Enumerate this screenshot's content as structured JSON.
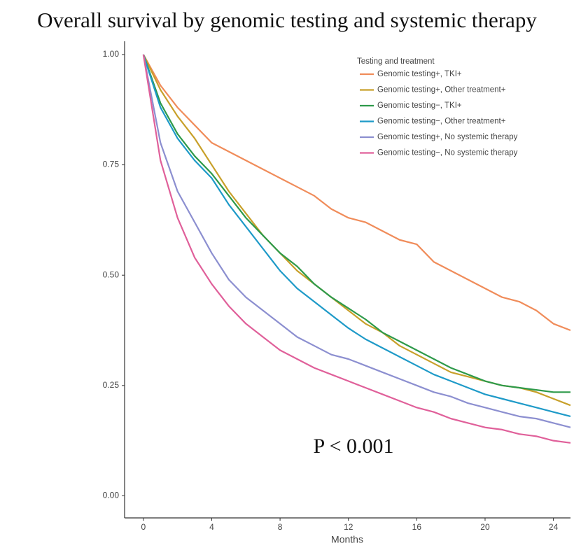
{
  "chart_data": {
    "type": "line",
    "title": "Overall survival by genomic testing and systemic therapy",
    "x_label": "Months",
    "legend_title": "Testing and treatment",
    "annotation": "P < 0.001",
    "legend_position": "top-right",
    "x": [
      0,
      1,
      2,
      3,
      4,
      5,
      6,
      7,
      8,
      9,
      10,
      11,
      12,
      13,
      14,
      15,
      16,
      17,
      18,
      19,
      20,
      21,
      22,
      23,
      24,
      25
    ],
    "series": [
      {
        "name": "Genomic testing+, TKI+",
        "color": "#f08c5a",
        "values": [
          1,
          0.93,
          0.88,
          0.84,
          0.8,
          0.78,
          0.76,
          0.74,
          0.72,
          0.7,
          0.68,
          0.65,
          0.63,
          0.62,
          0.6,
          0.58,
          0.57,
          0.53,
          0.51,
          0.49,
          0.47,
          0.45,
          0.44,
          0.42,
          0.39,
          0.375
        ]
      },
      {
        "name": "Genomic testing+, Other treatment+",
        "color": "#c8a02a",
        "values": [
          1,
          0.92,
          0.86,
          0.81,
          0.75,
          0.69,
          0.64,
          0.59,
          0.55,
          0.51,
          0.48,
          0.45,
          0.42,
          0.39,
          0.37,
          0.34,
          0.32,
          0.3,
          0.28,
          0.27,
          0.26,
          0.25,
          0.245,
          0.235,
          0.22,
          0.205
        ]
      },
      {
        "name": "Genomic testing−, TKI+",
        "color": "#2e9a4a",
        "values": [
          1,
          0.89,
          0.82,
          0.77,
          0.73,
          0.68,
          0.63,
          0.59,
          0.55,
          0.52,
          0.48,
          0.45,
          0.425,
          0.4,
          0.37,
          0.35,
          0.33,
          0.31,
          0.29,
          0.275,
          0.26,
          0.25,
          0.245,
          0.24,
          0.235,
          0.235
        ]
      },
      {
        "name": "Genomic testing−, Other treatment+",
        "color": "#1e9ac8",
        "values": [
          1,
          0.88,
          0.81,
          0.76,
          0.72,
          0.66,
          0.61,
          0.56,
          0.51,
          0.47,
          0.44,
          0.41,
          0.38,
          0.355,
          0.335,
          0.315,
          0.295,
          0.275,
          0.26,
          0.245,
          0.23,
          0.22,
          0.21,
          0.2,
          0.19,
          0.18
        ]
      },
      {
        "name": "Genomic testing+, No systemic therapy",
        "color": "#8c8fd0",
        "values": [
          1,
          0.8,
          0.69,
          0.62,
          0.55,
          0.49,
          0.45,
          0.42,
          0.39,
          0.36,
          0.34,
          0.32,
          0.31,
          0.295,
          0.28,
          0.265,
          0.25,
          0.235,
          0.225,
          0.21,
          0.2,
          0.19,
          0.18,
          0.175,
          0.165,
          0.155
        ]
      },
      {
        "name": "Genomic testing−, No systemic therapy",
        "color": "#e0609a",
        "values": [
          1,
          0.76,
          0.63,
          0.54,
          0.48,
          0.43,
          0.39,
          0.36,
          0.33,
          0.31,
          0.29,
          0.275,
          0.26,
          0.245,
          0.23,
          0.215,
          0.2,
          0.19,
          0.175,
          0.165,
          0.155,
          0.15,
          0.14,
          0.135,
          0.125,
          0.12
        ]
      }
    ],
    "xlim": [
      -1.1,
      25
    ],
    "xticks": [
      0,
      4,
      8,
      12,
      16,
      20,
      24
    ],
    "ylim": [
      -0.05,
      1.03
    ],
    "yticks": [
      {
        "value": 0,
        "label": "0.00"
      },
      {
        "value": 0.25,
        "label": "0.25"
      },
      {
        "value": 0.5,
        "label": "0.50"
      },
      {
        "value": 0.75,
        "label": "0.75"
      },
      {
        "value": 1,
        "label": "1.00"
      }
    ],
    "grid": false
  }
}
